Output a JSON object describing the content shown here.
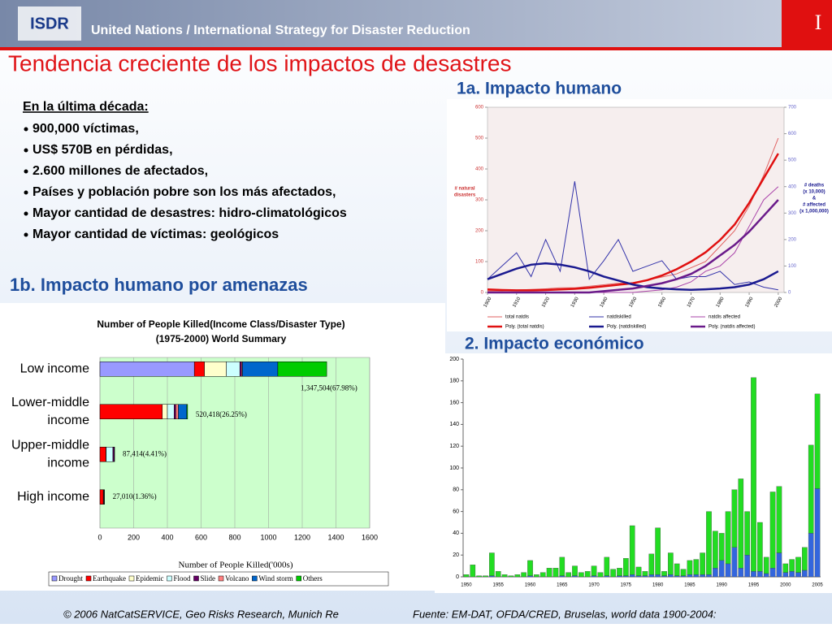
{
  "header": {
    "logo": "ISDR",
    "org": "United Nations / International Strategy for Disaster Reduction",
    "tab": "I"
  },
  "title": "Tendencia creciente de los impactos de desastres",
  "intro": {
    "heading": "En la última década:",
    "items": [
      "900,000 víctimas,",
      "US$ 570B en pérdidas,",
      "2.600 millones de afectados,",
      "Países y población pobre son los más afectados,",
      "Mayor cantidad de desastres: hidro-climatológicos",
      "Mayor cantidad de víctimas: geológicos"
    ]
  },
  "section_1b": "1b. Impacto humano por amenazas",
  "footer": {
    "left": "© 2006 NatCatSERVICE, Geo Risks Research, Munich Re",
    "right": "Fuente: EM-DAT, OFDA/CRED, Bruselas, world data 1900-2004:"
  },
  "chart_data": [
    {
      "type": "line",
      "title": "1a. Impacto humano",
      "ylabel": [
        "# natural",
        "disasters"
      ],
      "y2label": [
        "# deaths",
        "(x 10,000)",
        "&",
        "# affected",
        "(x 1,000,000)"
      ],
      "x": [
        1900,
        1905,
        1910,
        1915,
        1920,
        1925,
        1930,
        1935,
        1940,
        1945,
        1950,
        1955,
        1960,
        1965,
        1970,
        1975,
        1980,
        1985,
        1990,
        1995,
        2000
      ],
      "xlim": [
        1900,
        2002
      ],
      "xticks": [
        1900,
        1910,
        1920,
        1930,
        1940,
        1950,
        1960,
        1970,
        1980,
        1990,
        2000
      ],
      "ylim": [
        0,
        600
      ],
      "yticks": [
        0,
        100,
        200,
        300,
        400,
        500,
        600
      ],
      "y2lim": [
        0,
        700
      ],
      "y2ticks": [
        0,
        100,
        200,
        300,
        400,
        500,
        600,
        700
      ],
      "series": [
        {
          "name": "total natdis",
          "color": "#e06060",
          "linewidth": 1,
          "values": [
            5,
            5,
            8,
            10,
            12,
            15,
            15,
            20,
            25,
            30,
            30,
            40,
            50,
            60,
            80,
            100,
            150,
            200,
            280,
            380,
            500
          ]
        },
        {
          "name": "natdiskilled",
          "color": "#3333aa",
          "linewidth": 1,
          "axis": "y2",
          "values": [
            50,
            100,
            150,
            60,
            200,
            80,
            420,
            50,
            120,
            200,
            80,
            100,
            120,
            50,
            60,
            60,
            80,
            30,
            40,
            20,
            10
          ]
        },
        {
          "name": "natdis affected",
          "color": "#aa44aa",
          "linewidth": 1,
          "axis": "y2",
          "values": [
            0,
            0,
            0,
            0,
            0,
            0,
            0,
            0,
            0,
            0,
            0,
            5,
            10,
            20,
            40,
            80,
            100,
            150,
            250,
            350,
            400
          ]
        },
        {
          "name": "Poly. (total natdis)",
          "color": "#e01010",
          "linewidth": 2.5,
          "values": [
            10,
            8,
            7,
            7,
            8,
            10,
            12,
            15,
            20,
            25,
            30,
            40,
            55,
            75,
            100,
            130,
            170,
            220,
            290,
            370,
            450
          ]
        },
        {
          "name": "Poly. (natdiskilled)",
          "color": "#1a1a90",
          "linewidth": 2.5,
          "axis": "y2",
          "values": [
            50,
            70,
            90,
            105,
            110,
            105,
            95,
            80,
            60,
            45,
            30,
            20,
            15,
            12,
            10,
            12,
            15,
            20,
            30,
            50,
            80
          ]
        },
        {
          "name": "Poly. (natdis affected)",
          "color": "#6a1a8a",
          "linewidth": 2.5,
          "axis": "y2",
          "values": [
            0,
            0,
            0,
            0,
            0,
            0,
            0,
            0,
            5,
            10,
            15,
            25,
            35,
            50,
            70,
            100,
            140,
            180,
            230,
            290,
            350
          ]
        }
      ]
    },
    {
      "type": "hbar_stacked",
      "title": [
        "Number of People Killed(Income Class/Disaster Type)",
        "(1975-2000) World Summary"
      ],
      "xlabel": "Number of People Killed('000s)",
      "categories": [
        [
          "Low income"
        ],
        [
          "Lower-middle",
          "income"
        ],
        [
          "Upper-middle",
          "income"
        ],
        [
          "High income"
        ]
      ],
      "xlim": [
        0,
        1600
      ],
      "xticks": [
        0,
        200,
        400,
        600,
        800,
        1000,
        1200,
        1400,
        1600
      ],
      "annotations": [
        "1,347,504(67.98%)",
        "520,418(26.25%)",
        "87,414(4.41%)",
        "27,010(1.36%)"
      ],
      "series": [
        {
          "name": "Drought",
          "color": "#9999ff",
          "values": [
            560,
            0,
            0,
            0
          ]
        },
        {
          "name": "Earthquake",
          "color": "#ff0000",
          "values": [
            60,
            370,
            35,
            20
          ]
        },
        {
          "name": "Epidemic",
          "color": "#ffffcc",
          "values": [
            130,
            30,
            2,
            0
          ]
        },
        {
          "name": "Flood",
          "color": "#ccffff",
          "values": [
            80,
            40,
            40,
            3
          ]
        },
        {
          "name": "Slide",
          "color": "#660066",
          "values": [
            10,
            10,
            8,
            2
          ]
        },
        {
          "name": "Volcano",
          "color": "#ff8080",
          "values": [
            5,
            15,
            0,
            0
          ]
        },
        {
          "name": "Wind storm",
          "color": "#0066cc",
          "values": [
            210,
            50,
            2,
            2
          ]
        },
        {
          "name": "Others",
          "color": "#00cc00",
          "values": [
            290,
            5,
            0,
            0
          ]
        }
      ]
    },
    {
      "type": "bar_stacked",
      "title": "2. Impacto económico",
      "categories": [
        1950,
        null,
        null,
        null,
        null,
        1955,
        null,
        null,
        null,
        null,
        1960,
        null,
        null,
        null,
        null,
        1965,
        null,
        null,
        null,
        null,
        1970,
        null,
        null,
        null,
        null,
        1975,
        null,
        null,
        null,
        null,
        1980,
        null,
        null,
        null,
        null,
        1985,
        null,
        null,
        null,
        null,
        1990,
        null,
        null,
        null,
        null,
        1995,
        null,
        null,
        null,
        null,
        2000,
        null,
        null,
        null,
        null,
        2005
      ],
      "ylim": [
        0,
        200
      ],
      "yticks": [
        0,
        20,
        40,
        60,
        80,
        100,
        120,
        140,
        160,
        180,
        200
      ],
      "series": [
        {
          "color": "#3366dd",
          "values": [
            0,
            0,
            0,
            0,
            1,
            0,
            0,
            0,
            0,
            0,
            1,
            0,
            0,
            0,
            0,
            1,
            0,
            1,
            0,
            0,
            1,
            0,
            1,
            0,
            1,
            1,
            2,
            1,
            1,
            2,
            2,
            1,
            2,
            1,
            1,
            2,
            2,
            2,
            2,
            8,
            15,
            12,
            27,
            8,
            20,
            5,
            5,
            3,
            8,
            22,
            4,
            5,
            4,
            6,
            40,
            81
          ]
        },
        {
          "color": "#22dd22",
          "values": [
            2,
            11,
            1,
            1,
            21,
            5,
            2,
            1,
            2,
            4,
            14,
            2,
            4,
            8,
            8,
            17,
            4,
            9,
            4,
            5,
            9,
            4,
            17,
            7,
            7,
            16,
            45,
            8,
            4,
            19,
            43,
            4,
            20,
            11,
            6,
            13,
            14,
            20,
            58,
            34,
            25,
            48,
            53,
            82,
            40,
            178,
            45,
            15,
            70,
            61,
            8,
            11,
            14,
            21,
            81,
            87
          ]
        }
      ]
    }
  ]
}
